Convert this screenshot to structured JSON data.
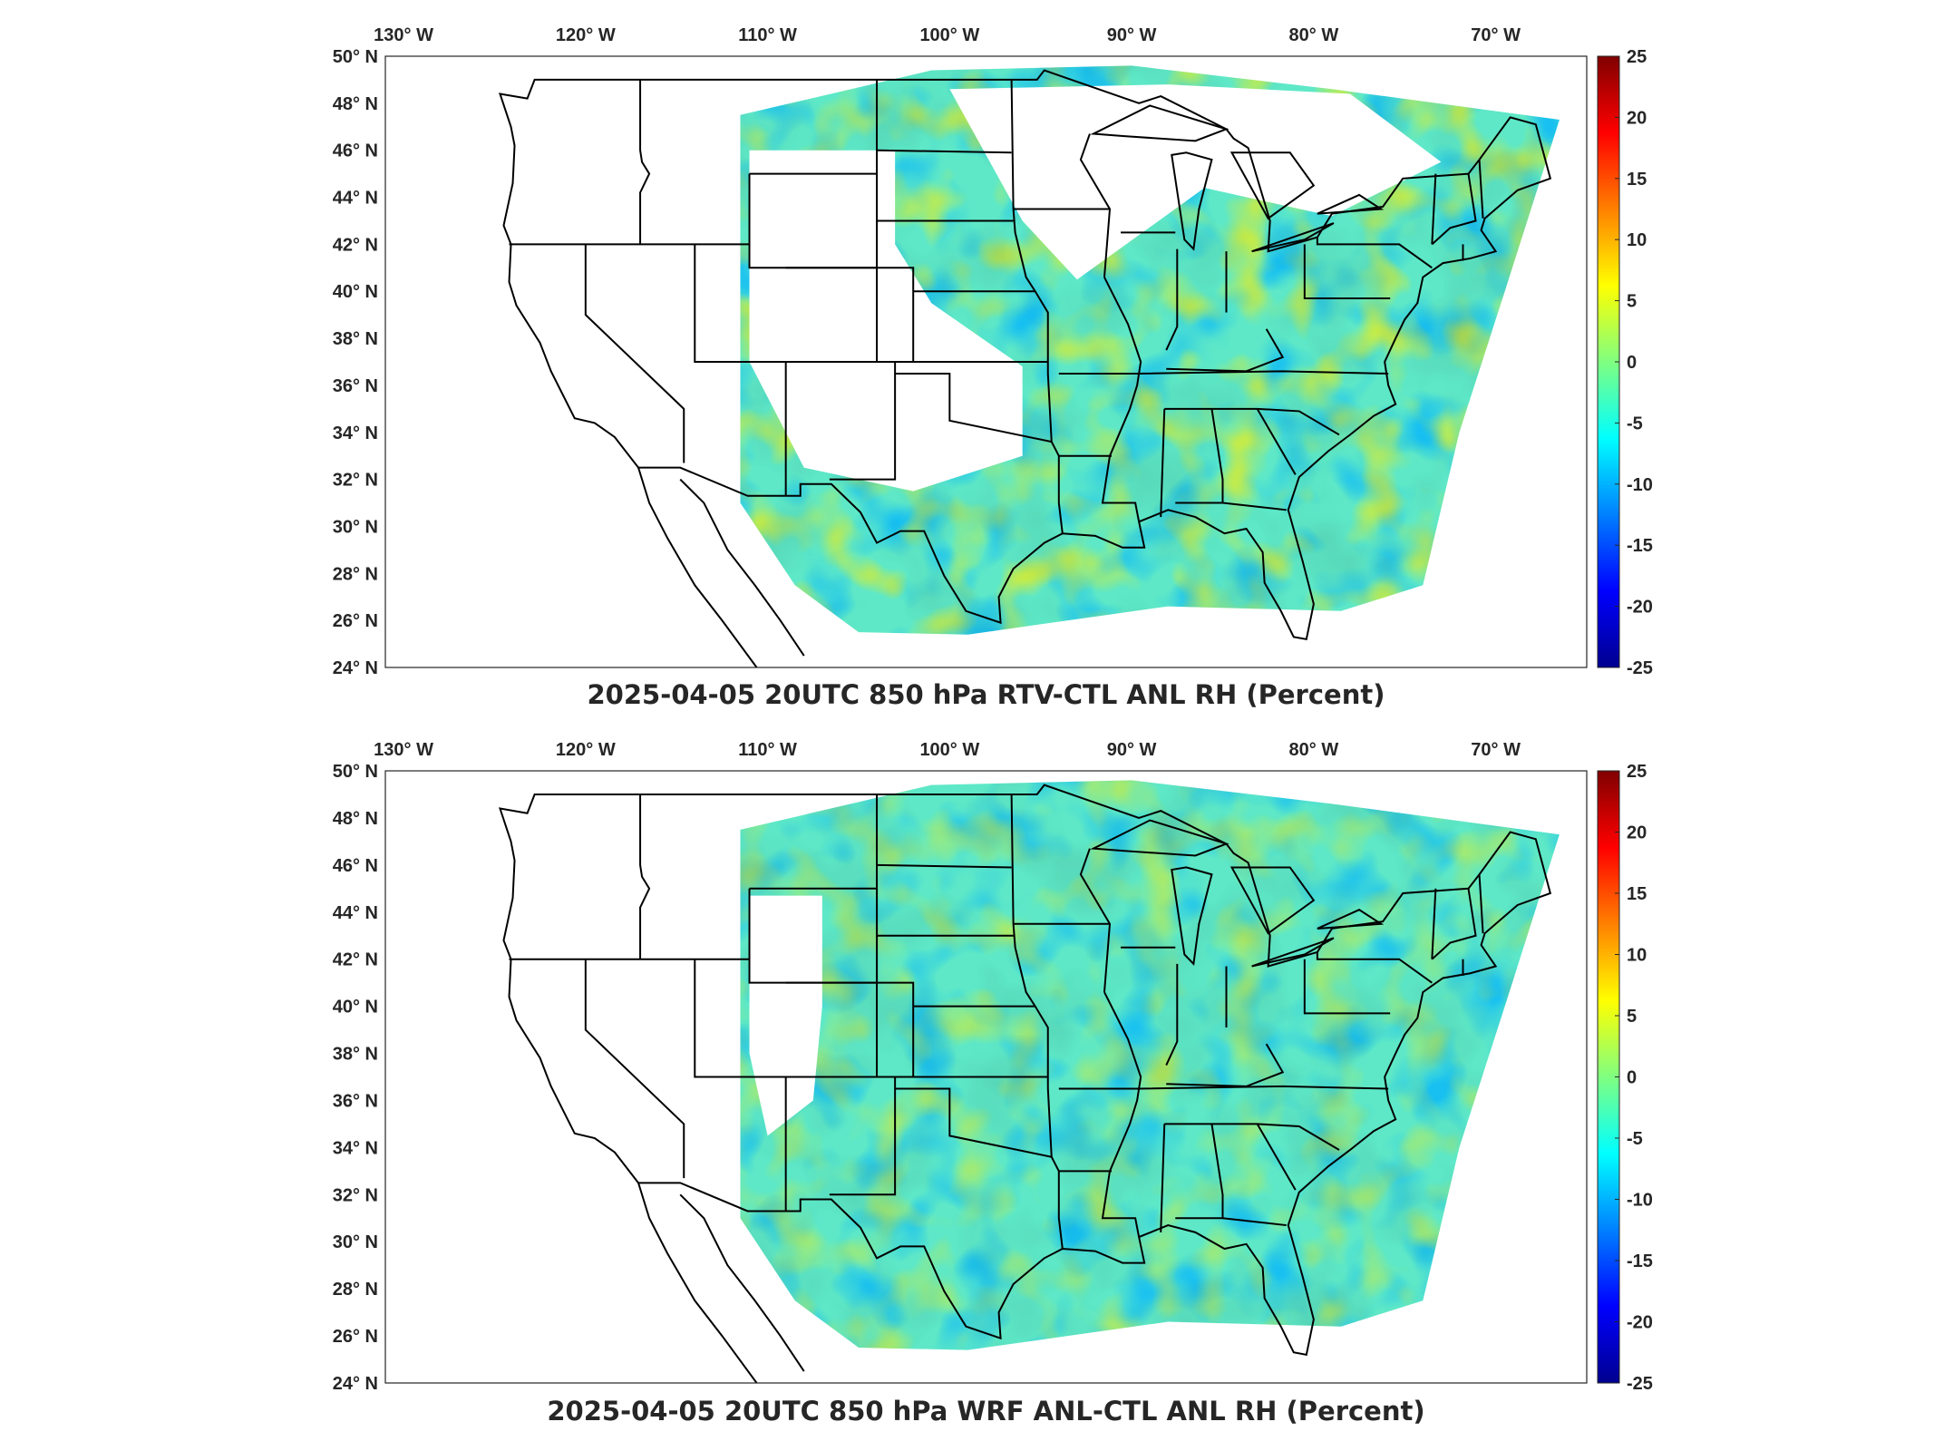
{
  "colors": {
    "colormap": [
      "#00008f",
      "#0000ff",
      "#0080ff",
      "#00ffff",
      "#80ff80",
      "#ffff00",
      "#ff8000",
      "#ff0000",
      "#800000"
    ],
    "map_outline": "#000000",
    "axis": "#262626",
    "no_data": "#ffffff"
  },
  "chart_data": [
    {
      "type": "heatmap",
      "title": "2025-04-05 20UTC 850 hPa RTV-CTL ANL RH (Percent)",
      "longitude_ticks": [
        "130° W",
        "120° W",
        "110° W",
        "100° W",
        "90° W",
        "80° W",
        "70° W"
      ],
      "latitude_ticks": [
        "50° N",
        "48° N",
        "46° N",
        "44° N",
        "42° N",
        "40° N",
        "38° N",
        "36° N",
        "34° N",
        "32° N",
        "30° N",
        "28° N",
        "26° N",
        "24° N"
      ],
      "colorbar": {
        "ticks": [
          "25",
          "20",
          "15",
          "10",
          "5",
          "0",
          "-5",
          "-10",
          "-15",
          "-20",
          "-25"
        ],
        "range": [
          -25,
          25
        ]
      }
    },
    {
      "type": "heatmap",
      "title": "2025-04-05 20UTC 850 hPa WRF ANL-CTL ANL RH (Percent)",
      "longitude_ticks": [
        "130° W",
        "120° W",
        "110° W",
        "100° W",
        "90° W",
        "80° W",
        "70° W"
      ],
      "latitude_ticks": [
        "50° N",
        "48° N",
        "46° N",
        "44° N",
        "42° N",
        "40° N",
        "38° N",
        "36° N",
        "34° N",
        "32° N",
        "30° N",
        "28° N",
        "26° N",
        "24° N"
      ],
      "colorbar": {
        "ticks": [
          "25",
          "20",
          "15",
          "10",
          "5",
          "0",
          "-5",
          "-10",
          "-15",
          "-20",
          "-25"
        ],
        "range": [
          -25,
          25
        ]
      }
    }
  ]
}
